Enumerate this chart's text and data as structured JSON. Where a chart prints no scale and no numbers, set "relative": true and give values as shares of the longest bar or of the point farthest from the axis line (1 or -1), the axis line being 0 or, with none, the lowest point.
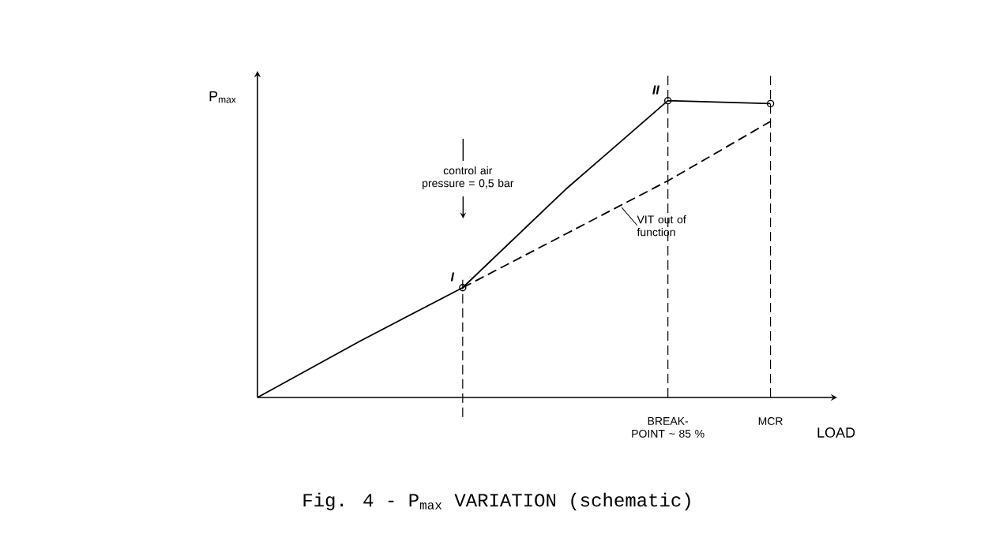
{
  "chart_data": {
    "type": "line",
    "title": "Fig. 4 - P$_{max}$ VARIATION (schematic)",
    "xlabel": "LOAD",
    "ylabel": "P$_{max}$",
    "relative": true,
    "categories": [
      null,
      null,
      null,
      null,
      "BREAK-POINT ~ 85 %",
      "MCR"
    ],
    "series": [
      {
        "color": "#000000",
        "values": [
          0,
          0.19,
          0.37,
          0.7,
          1,
          0.99
        ],
        "marker": "none",
        "line_style": "solid"
      },
      {
        "name": "VIT out of function",
        "color": "#000000",
        "values": [
          null,
          null,
          0.37,
          0.55,
          0.73,
          0.93
        ],
        "marker": "none",
        "line_style": "dashed"
      },
      {
        "type": "scatter",
        "color": "#000000",
        "values": [
          null,
          null,
          0.37,
          null,
          1,
          0.99
        ],
        "marker": "circle"
      }
    ],
    "annotations": [
      "control air pressure = 0,5 bar",
      "I",
      "II"
    ],
    "grid": "x",
    "tick_labels": "x"
  }
}
